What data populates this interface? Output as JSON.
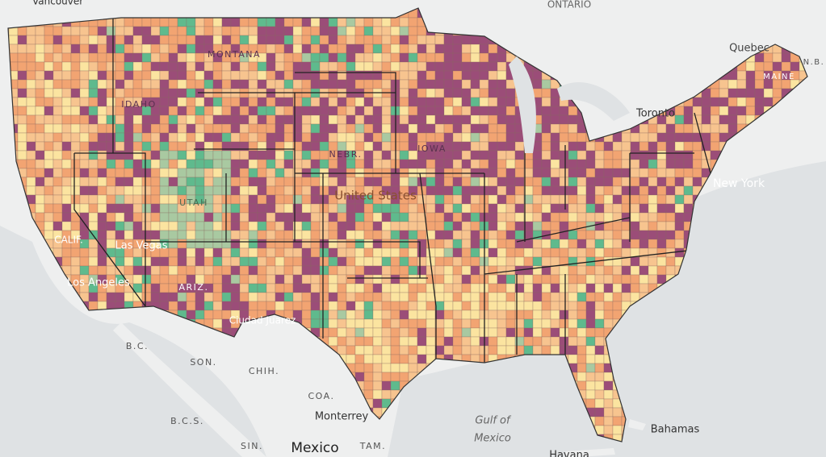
{
  "map": {
    "labels": [
      "Vancouver",
      "ONTARIO",
      "Quebec",
      "N.B.",
      "Toronto",
      "New York",
      "MONTANA",
      "IDAHO",
      "UTAH",
      "NEBR.",
      "IOWA",
      "United States",
      "Las Vegas",
      "Los Angeles",
      "CALIF.",
      "ARIZ.",
      "Ciudad Juarez",
      "B.C.",
      "SON.",
      "CHIH.",
      "COA.",
      "Monterrey",
      "B.C.S.",
      "SIN.",
      "Mexico",
      "TAM.",
      "Gulf of",
      "Mexico",
      "Bahamas",
      "Havana",
      "MAINE"
    ]
  }
}
